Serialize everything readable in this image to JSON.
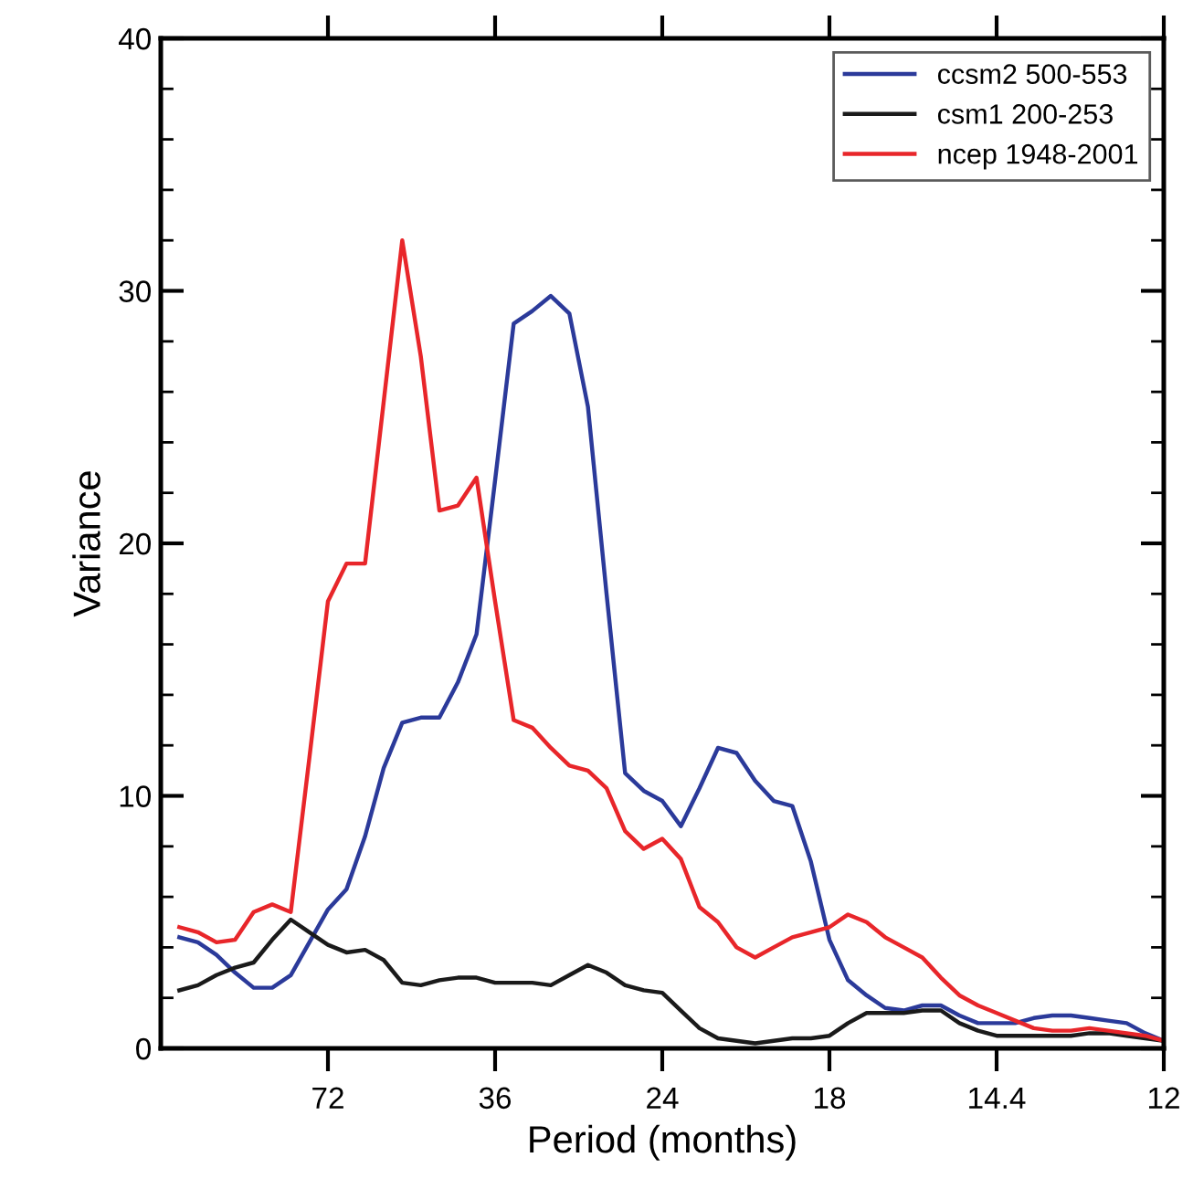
{
  "chart_data": {
    "type": "line",
    "xlabel": "Period (months)",
    "ylabel": "Variance",
    "categories": [
      null,
      null,
      null,
      null,
      null,
      null,
      null,
      null,
      "72",
      null,
      null,
      null,
      null,
      null,
      null,
      null,
      null,
      "36",
      null,
      null,
      null,
      null,
      null,
      null,
      null,
      null,
      "24",
      null,
      null,
      null,
      null,
      null,
      null,
      null,
      null,
      "18",
      null,
      null,
      null,
      null,
      null,
      null,
      null,
      null,
      "14.4",
      null,
      null,
      null,
      null,
      null,
      null,
      null,
      null,
      "12"
    ],
    "series": [
      {
        "name": "ccsm2 500-553",
        "color": "#2b3a9a",
        "values": [
          4.4,
          4.2,
          3.7,
          3.0,
          2.4,
          2.4,
          2.9,
          4.2,
          5.5,
          6.3,
          8.4,
          11.1,
          12.9,
          13.1,
          13.1,
          14.5,
          16.4,
          22.5,
          28.7,
          29.2,
          29.8,
          29.1,
          25.4,
          18.0,
          10.9,
          10.2,
          9.8,
          8.8,
          10.3,
          11.9,
          11.7,
          10.6,
          9.8,
          9.6,
          7.4,
          4.3,
          2.7,
          2.1,
          1.6,
          1.5,
          1.7,
          1.7,
          1.3,
          1.0,
          1.0,
          1.0,
          1.2,
          1.3,
          1.3,
          1.2,
          1.1,
          1.0,
          0.6,
          0.3
        ]
      },
      {
        "name": "csm1 200-253",
        "color": "#1a1a1a",
        "values": [
          2.3,
          2.5,
          2.9,
          3.2,
          3.4,
          4.3,
          5.1,
          4.6,
          4.1,
          3.8,
          3.9,
          3.5,
          2.6,
          2.5,
          2.7,
          2.8,
          2.8,
          2.6,
          2.6,
          2.6,
          2.5,
          2.9,
          3.3,
          3.0,
          2.5,
          2.3,
          2.2,
          1.5,
          0.8,
          0.4,
          0.3,
          0.2,
          0.3,
          0.4,
          0.4,
          0.5,
          1.0,
          1.4,
          1.4,
          1.4,
          1.5,
          1.5,
          1.0,
          0.7,
          0.5,
          0.5,
          0.5,
          0.5,
          0.5,
          0.6,
          0.6,
          0.5,
          0.4,
          0.3
        ]
      },
      {
        "name": "ncep 1948-2001",
        "color": "#e8262a",
        "values": [
          4.8,
          4.6,
          4.2,
          4.3,
          5.4,
          5.7,
          5.4,
          11.5,
          17.7,
          19.2,
          19.2,
          25.6,
          32.0,
          27.4,
          21.3,
          21.5,
          22.6,
          17.7,
          13.0,
          12.7,
          11.9,
          11.2,
          11.0,
          10.3,
          8.6,
          7.9,
          8.3,
          7.5,
          5.6,
          5.0,
          4.0,
          3.6,
          4.0,
          4.4,
          4.6,
          4.8,
          5.3,
          5.0,
          4.4,
          4.0,
          3.6,
          2.8,
          2.1,
          1.7,
          1.4,
          1.1,
          0.8,
          0.7,
          0.7,
          0.8,
          0.7,
          0.6,
          0.5,
          0.3
        ]
      }
    ],
    "ylim": [
      0,
      40
    ],
    "yticks": [
      0,
      {
        "value": 2,
        "label": null
      },
      {
        "value": 4,
        "label": null
      },
      {
        "value": 6,
        "label": null
      },
      {
        "value": 8,
        "label": null
      },
      10,
      {
        "value": 12,
        "label": null
      },
      {
        "value": 14,
        "label": null
      },
      {
        "value": 16,
        "label": null
      },
      {
        "value": 18,
        "label": null
      },
      20,
      {
        "value": 22,
        "label": null
      },
      {
        "value": 24,
        "label": null
      },
      {
        "value": 26,
        "label": null
      },
      {
        "value": 28,
        "label": null
      },
      30,
      {
        "value": 32,
        "label": null
      },
      {
        "value": 34,
        "label": null
      },
      {
        "value": 36,
        "label": null
      },
      {
        "value": 38,
        "label": null
      },
      40
    ],
    "legend": "top right",
    "grid": false,
    "line_style": "solid"
  }
}
